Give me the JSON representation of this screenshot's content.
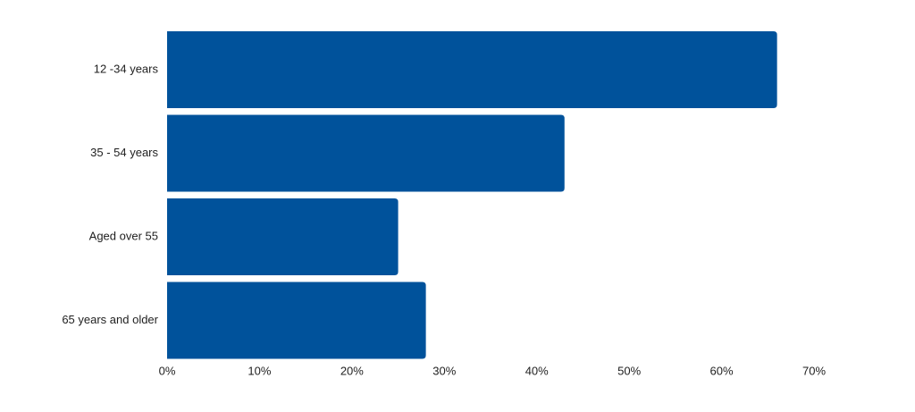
{
  "chart_data": {
    "type": "bar",
    "orientation": "horizontal",
    "categories": [
      "12 -34 years",
      "35 - 54 years",
      "Aged over 55",
      "65 years and older"
    ],
    "values": [
      66,
      43,
      25,
      28
    ],
    "unit": "%",
    "xlim": [
      0,
      70
    ],
    "xticks": [
      0,
      10,
      20,
      30,
      40,
      50,
      60,
      70
    ],
    "xtick_labels": [
      "0%",
      "10%",
      "20%",
      "30%",
      "40%",
      "50%",
      "60%",
      "70%"
    ],
    "grid": false,
    "legend": "none",
    "bar_color": "#00529b"
  }
}
